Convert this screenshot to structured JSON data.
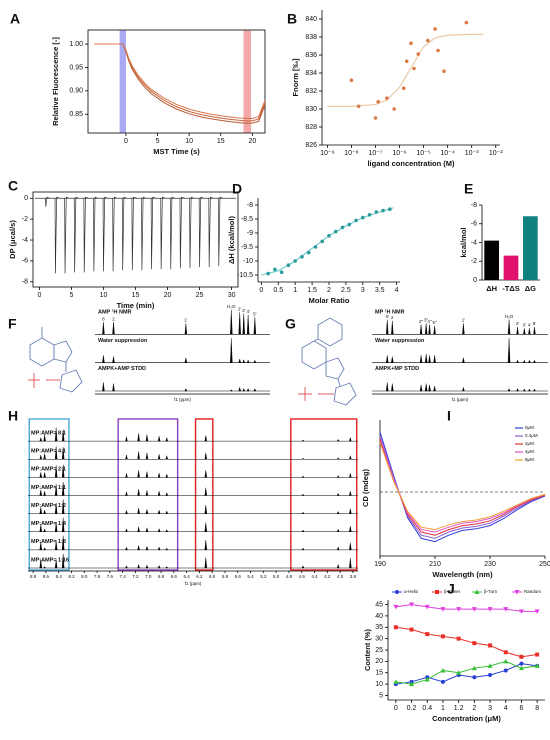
{
  "chart_data": [
    {
      "panel": "A",
      "type": "line",
      "frame": true,
      "xlabel": "MST Time (s)",
      "ylabel": "Relative Fluorescence [-]",
      "xlim": [
        -6,
        22
      ],
      "ylim": [
        0.81,
        1.03
      ],
      "xticks": [
        0,
        5,
        10,
        15,
        20
      ],
      "yticks": [
        0.85,
        {
          "value": 0.9,
          "label": "0.90"
        },
        0.95,
        {
          "value": 1,
          "label": "1.00"
        }
      ],
      "bands": [
        {
          "range": [
            -1,
            0
          ],
          "color": "#8c8cf0"
        },
        {
          "range": [
            18.6,
            19.8
          ],
          "color": "#f08c8c"
        }
      ],
      "x": [
        -5,
        -1,
        -0.5,
        0,
        0.5,
        1,
        2,
        3,
        4,
        6,
        8,
        10,
        12,
        14,
        16,
        18,
        19,
        20,
        21,
        22
      ],
      "series": [
        {
          "color": "#c8643a",
          "values": [
            1.0,
            1.0,
            1.0,
            0.985,
            0.965,
            0.95,
            0.928,
            0.912,
            0.899,
            0.88,
            0.866,
            0.856,
            0.849,
            0.844,
            0.84,
            0.837,
            0.836,
            0.836,
            0.84,
            0.875
          ]
        },
        {
          "color": "#b85a34",
          "values": [
            1.0,
            1.0,
            1.0,
            0.983,
            0.962,
            0.946,
            0.924,
            0.907,
            0.894,
            0.875,
            0.861,
            0.851,
            0.844,
            0.839,
            0.835,
            0.832,
            0.831,
            0.831,
            0.835,
            0.87
          ]
        },
        {
          "color": "#d8784a",
          "values": [
            1.0,
            1.0,
            1.0,
            0.987,
            0.968,
            0.953,
            0.932,
            0.916,
            0.903,
            0.885,
            0.871,
            0.861,
            0.854,
            0.849,
            0.845,
            0.842,
            0.841,
            0.841,
            0.845,
            0.88
          ]
        }
      ]
    },
    {
      "panel": "B",
      "type": "scatter",
      "xlog": true,
      "xlabel": "ligand concentration (M)",
      "ylabel": "Fnorm [‰]",
      "xlim": [
        6e-10,
        0.015
      ],
      "ylim": [
        826,
        841
      ],
      "xticks": [
        {
          "value": 1e-09,
          "label": "10⁻⁹"
        },
        {
          "value": 1e-08,
          "label": "10⁻⁸"
        },
        {
          "value": 1e-07,
          "label": "10⁻⁷"
        },
        {
          "value": 1e-06,
          "label": "10⁻⁶"
        },
        {
          "value": 1e-05,
          "label": "10⁻⁵"
        },
        {
          "value": 0.0001,
          "label": "10⁻⁴"
        },
        {
          "value": 0.001,
          "label": "10⁻³"
        },
        {
          "value": 0.01,
          "label": "10⁻²"
        }
      ],
      "yticks": [
        826,
        828,
        830,
        832,
        834,
        836,
        838,
        840
      ],
      "color": "#d97a4a",
      "x": [
        1e-08,
        2e-08,
        1e-07,
        1.3e-07,
        3e-07,
        6e-07,
        1.5e-06,
        2e-06,
        3e-06,
        4e-06,
        6e-06,
        1.5e-05,
        3e-05,
        4e-05,
        7e-05,
        0.0006
      ],
      "values": [
        833.2,
        830.3,
        829.0,
        830.8,
        831.2,
        830.0,
        832.3,
        835.3,
        837.3,
        834.5,
        836.1,
        837.6,
        838.9,
        836.5,
        834.2,
        839.6
      ],
      "fit": {
        "color": "#ebc49e",
        "x": [
          1e-09,
          1e-08,
          1e-07,
          3e-07,
          1e-06,
          3e-06,
          1e-05,
          3e-05,
          0.0001,
          0.001,
          0.003
        ],
        "values": [
          830.3,
          830.3,
          830.5,
          831.0,
          832.4,
          834.6,
          836.9,
          837.9,
          838.2,
          838.3,
          838.3
        ]
      }
    },
    {
      "panel": "C",
      "type": "spikes",
      "xlabel": "Time (min)",
      "ylabel": "DP (μcal/s)",
      "xlim": [
        -1,
        31
      ],
      "ylim": [
        -8.5,
        0.6
      ],
      "xticks": [
        0,
        5,
        10,
        15,
        20,
        25,
        30
      ],
      "yticks": [
        0,
        -2,
        -4,
        -6,
        -8
      ],
      "color": "#333333",
      "x": [
        1.0,
        2.5,
        4.0,
        5.5,
        7.0,
        8.5,
        10,
        11.5,
        13,
        14.5,
        16,
        17.5,
        19,
        20.5,
        22,
        23.5,
        25,
        26.5,
        28
      ],
      "values": [
        -0.8,
        -7.2,
        -7.2,
        -7.1,
        -7.1,
        -7.0,
        -7.0,
        -7.0,
        -6.9,
        -6.9,
        -6.9,
        -6.8,
        -6.8,
        -6.8,
        -6.7,
        -6.7,
        -6.6,
        -6.6,
        -6.5
      ]
    },
    {
      "panel": "D",
      "type": "scatter",
      "xlabel": "Molar Ratio",
      "ylabel": "ΔH (kcal/mol)",
      "xlim": [
        -0.1,
        4.1
      ],
      "ylim": [
        -10.75,
        -7.75
      ],
      "xticks": [
        0,
        0.5,
        1,
        1.5,
        2,
        2.5,
        3,
        3.5,
        4
      ],
      "yticks": [
        -8,
        -8.5,
        -9,
        -9.5,
        -10,
        -10.5
      ],
      "color": "#2a9a9a",
      "x": [
        0.2,
        0.4,
        0.6,
        0.8,
        1.0,
        1.2,
        1.4,
        1.6,
        1.8,
        2.0,
        2.2,
        2.4,
        2.6,
        2.8,
        3.0,
        3.2,
        3.4,
        3.6,
        3.8
      ],
      "values": [
        -10.45,
        -10.3,
        -10.4,
        -10.15,
        -10.0,
        -9.85,
        -9.7,
        -9.5,
        -9.3,
        -9.1,
        -8.95,
        -8.8,
        -8.7,
        -8.55,
        -8.45,
        -8.35,
        -8.25,
        -8.2,
        -8.15
      ],
      "fit": {
        "color": "#6cc8d0",
        "x": [
          0,
          0.5,
          1,
          1.5,
          2,
          2.5,
          3,
          3.5,
          3.9
        ],
        "values": [
          -10.5,
          -10.35,
          -10.0,
          -9.55,
          -9.1,
          -8.75,
          -8.45,
          -8.25,
          -8.1
        ]
      }
    },
    {
      "panel": "E",
      "type": "bar",
      "ylabel": "kcal/mol",
      "ylim": [
        0,
        -8
      ],
      "yticks": [
        -8,
        -6,
        -4,
        -2,
        0
      ],
      "categories": [
        "ΔH",
        "-TΔS",
        "ΔG"
      ],
      "values": [
        -4.2,
        -2.6,
        -6.8
      ],
      "colors": [
        "#000000",
        "#e0106e",
        "#108080"
      ]
    },
    {
      "panel": "F",
      "type": "nmr",
      "name_position": "above",
      "xlim": [
        8.8,
        3.6
      ],
      "xlabel": "f1 (ppm)",
      "color": "#000000",
      "x": [
        8.55,
        8.25,
        6.1,
        4.75,
        4.5,
        4.38,
        4.25,
        4.05
      ],
      "peak_labels": [
        "8",
        "2",
        "1'",
        "H₂O",
        "2'",
        "3'",
        "4'",
        "5'"
      ],
      "series": [
        {
          "name": "AMP ¹H NMR",
          "values": [
            0.5,
            0.5,
            0.45,
            1.0,
            0.9,
            0.85,
            0.8,
            0.7
          ]
        },
        {
          "name": "Water suppression",
          "values": [
            0.3,
            0.25,
            0.2,
            1.0,
            0.15,
            0.12,
            0.1,
            0.1
          ]
        },
        {
          "name": "AMPK+AMP STDD",
          "values": [
            0.35,
            0.3,
            0.1,
            0.05,
            0.15,
            0.1,
            0.1,
            0.1
          ]
        }
      ]
    },
    {
      "panel": "G",
      "type": "nmr",
      "name_position": "above",
      "xlim": [
        8.8,
        3.6
      ],
      "xlabel": "f1 (ppm)",
      "color": "#000000",
      "x": [
        8.35,
        8.2,
        7.35,
        7.2,
        7.1,
        6.95,
        6.1,
        4.75,
        4.5,
        4.3,
        4.15,
        4.0
      ],
      "peak_labels": [
        "8",
        "2",
        "2''",
        "3''",
        "4''",
        "5''",
        "1'",
        "H₂O",
        "2'",
        "3'",
        "4'",
        "5'"
      ],
      "series": [
        {
          "name": "MP ¹H NMR",
          "values": [
            0.6,
            0.55,
            0.4,
            0.45,
            0.4,
            0.35,
            0.45,
            0.6,
            0.3,
            0.25,
            0.25,
            0.3
          ]
        },
        {
          "name": "Water suppression",
          "values": [
            0.3,
            0.25,
            0.3,
            0.35,
            0.3,
            0.3,
            0.2,
            1.0,
            0.1,
            0.1,
            0.1,
            0.1
          ]
        },
        {
          "name": "AMPK+MP STDD",
          "values": [
            0.35,
            0.3,
            0.25,
            0.3,
            0.25,
            0.2,
            0.15,
            0.1,
            0.1,
            0.08,
            0.08,
            0.08
          ]
        }
      ]
    },
    {
      "panel": "H",
      "type": "nmr",
      "name_position": "left",
      "xlim": [
        8.88,
        3.72
      ],
      "xlabel": "f1 (ppm)",
      "color": "#000000",
      "xticks": [
        8.8,
        8.6,
        8.4,
        8.2,
        {
          "value": 8,
          "label": "8.0"
        },
        7.8,
        7.6,
        7.4,
        7.2,
        {
          "value": 7,
          "label": "7.0"
        },
        6.8,
        6.6,
        6.4,
        6.2,
        {
          "value": 6,
          "label": "6.0"
        },
        5.8,
        5.6,
        5.4,
        5.2,
        {
          "value": 5,
          "label": "5.0"
        },
        4.8,
        4.6,
        4.4,
        4.2,
        {
          "value": 4,
          "label": "4.0"
        },
        3.8
      ],
      "regions": [
        {
          "range": [
            8.86,
            8.24
          ],
          "color": "#4aa8d8"
        },
        {
          "range": [
            7.47,
            6.54
          ],
          "color": "#8a3fc0"
        },
        {
          "range": [
            6.26,
            5.99
          ],
          "color": "#e02020"
        },
        {
          "range": [
            4.77,
            3.74
          ],
          "color": "#e02020"
        }
      ],
      "x": [
        8.68,
        8.62,
        8.44,
        8.33,
        7.34,
        7.15,
        7.02,
        6.83,
        6.71,
        6.1,
        4.58,
        4.03,
        3.84
      ],
      "series": [
        {
          "name": "MP:AMP= 8:1",
          "values": [
            0.25,
            0.45,
            0.95,
            0.8,
            0.3,
            0.55,
            0.45,
            0.35,
            0.25,
            0.4,
            0.08,
            0.12,
            0.25
          ]
        },
        {
          "name": "MP:AMP= 4:1",
          "values": [
            0.3,
            0.4,
            0.9,
            0.85,
            0.3,
            0.55,
            0.45,
            0.35,
            0.25,
            0.45,
            0.08,
            0.12,
            0.25
          ]
        },
        {
          "name": "MP:AMP= 2:1",
          "values": [
            0.35,
            0.35,
            0.85,
            0.9,
            0.28,
            0.5,
            0.4,
            0.3,
            0.22,
            0.5,
            0.1,
            0.12,
            0.28
          ]
        },
        {
          "name": "MP:AMP= 1:1",
          "values": [
            0.4,
            0.3,
            0.8,
            0.95,
            0.25,
            0.45,
            0.35,
            0.3,
            0.2,
            0.55,
            0.1,
            0.15,
            0.3
          ]
        },
        {
          "name": "MP:AMP= 1:2",
          "values": [
            0.45,
            0.25,
            0.75,
            1.0,
            0.22,
            0.4,
            0.3,
            0.25,
            0.18,
            0.6,
            0.1,
            0.15,
            0.35
          ]
        },
        {
          "name": "MP:AMP= 1:4",
          "values": [
            0.5,
            0.2,
            0.7,
            1.0,
            0.2,
            0.35,
            0.28,
            0.22,
            0.15,
            0.65,
            0.12,
            0.18,
            0.4
          ]
        },
        {
          "name": "MP:AMP= 1:8",
          "values": [
            0.55,
            0.15,
            0.65,
            1.0,
            0.18,
            0.3,
            0.25,
            0.2,
            0.12,
            0.7,
            0.12,
            0.2,
            0.5
          ]
        },
        {
          "name": "MP:AMP= 1:16",
          "values": [
            0.6,
            0.1,
            0.6,
            1.0,
            0.15,
            0.25,
            0.2,
            0.18,
            0.1,
            0.75,
            0.15,
            0.25,
            0.7
          ]
        }
      ]
    },
    {
      "panel": "I",
      "type": "line",
      "zero_line": true,
      "legend": "upper right",
      "xlabel": "Wavelength (nm)",
      "ylabel": "CD (mdeg)",
      "xlim": [
        190,
        250
      ],
      "ylim": [
        -8,
        9
      ],
      "xticks": [
        190,
        210,
        230,
        250
      ],
      "x": [
        190,
        195,
        200,
        205,
        210,
        215,
        220,
        225,
        230,
        235,
        240,
        245,
        250
      ],
      "series": [
        {
          "name": "0μM",
          "color": "#2f3fd9",
          "values": [
            7.5,
            2.0,
            -3.2,
            -5.8,
            -6.2,
            -5.4,
            -4.8,
            -4.6,
            -4.2,
            -3.3,
            -2.2,
            -1.2,
            -0.5
          ]
        },
        {
          "name": "0.4μM",
          "color": "#8a5cd6",
          "values": [
            7.0,
            1.8,
            -3.0,
            -5.4,
            -5.8,
            -5.0,
            -4.5,
            -4.3,
            -3.9,
            -3.0,
            -2.0,
            -1.1,
            -0.4
          ]
        },
        {
          "name": "2μM",
          "color": "#e0303a",
          "values": [
            6.5,
            1.5,
            -2.8,
            -5.0,
            -5.4,
            -4.7,
            -4.2,
            -4.0,
            -3.6,
            -2.8,
            -1.8,
            -1.0,
            -0.4
          ]
        },
        {
          "name": "4μM",
          "color": "#e050c8",
          "values": [
            6.8,
            1.6,
            -2.6,
            -4.7,
            -5.0,
            -4.4,
            -3.9,
            -3.7,
            -3.3,
            -2.6,
            -1.7,
            -0.9,
            -0.3
          ]
        },
        {
          "name": "8μM",
          "color": "#f0a030",
          "values": [
            6.2,
            1.3,
            -2.4,
            -4.4,
            -4.7,
            -4.1,
            -3.7,
            -3.5,
            -3.1,
            -2.4,
            -1.6,
            -0.8,
            -0.3
          ]
        }
      ]
    },
    {
      "panel": "J",
      "type": "line",
      "legend": "top",
      "xlabel": "Concentration (μM)",
      "ylabel": "Content (%)",
      "ylim": [
        3,
        47
      ],
      "yticks": [
        5,
        10,
        15,
        20,
        25,
        30,
        35,
        40,
        45
      ],
      "categories": [
        "0",
        "0.2",
        "0.4",
        "1",
        "1.2",
        "2",
        "3",
        "4",
        "6",
        "8"
      ],
      "series": [
        {
          "name": "α-Helix",
          "color": "#2a3fd6",
          "marker": "circle",
          "values": [
            10,
            11,
            13,
            11,
            14,
            13,
            14,
            16,
            19,
            18
          ]
        },
        {
          "name": "β-Sheet",
          "color": "#e8302a",
          "marker": "square",
          "values": [
            35,
            34,
            32,
            31,
            30,
            28,
            27,
            24,
            22,
            23
          ]
        },
        {
          "name": "β-Turn",
          "color": "#38c038",
          "marker": "triangle",
          "values": [
            11,
            10,
            12,
            16,
            15,
            17,
            18,
            20,
            17,
            18
          ]
        },
        {
          "name": "Random",
          "color": "#e040e0",
          "marker": "down",
          "values": [
            44,
            45,
            44,
            43,
            43,
            43,
            43,
            43,
            42,
            42
          ]
        }
      ]
    }
  ]
}
